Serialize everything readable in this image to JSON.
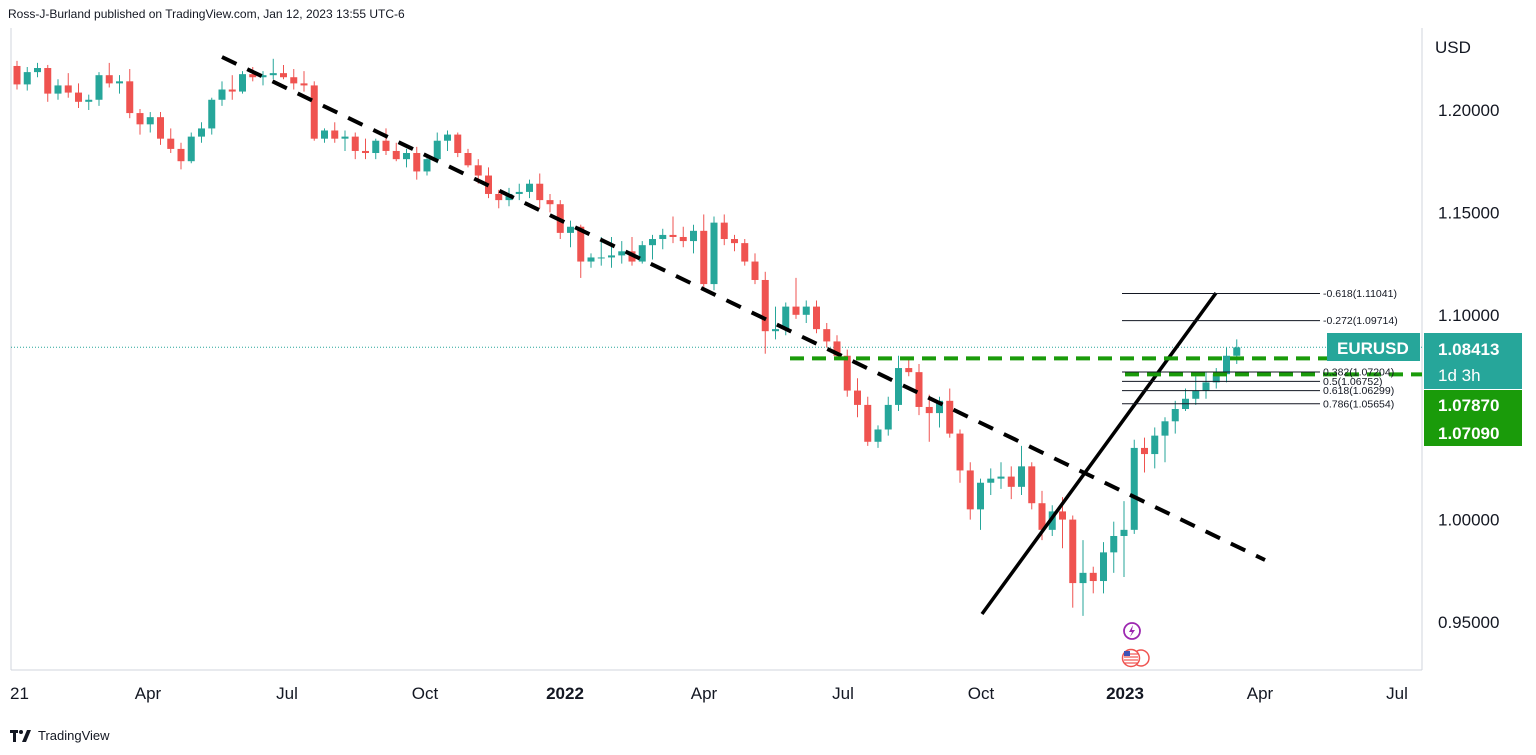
{
  "header": {
    "text": "Ross-J-Burland published on TradingView.com, Jan 12, 2023 13:55 UTC-6"
  },
  "footer": {
    "brand": "TradingView"
  },
  "chart_data": {
    "type": "candlestick",
    "symbol": "EURUSD",
    "currency": "USD",
    "interval_label": "1d 3h",
    "y_range": [
      0.92,
      1.225
    ],
    "y_ticks": [
      "1.20000",
      "1.15000",
      "1.10000",
      "1.00000",
      "0.95000"
    ],
    "x_ticks": [
      {
        "label": "21",
        "bold": false
      },
      {
        "label": "Apr",
        "bold": false
      },
      {
        "label": "Jul",
        "bold": false
      },
      {
        "label": "Oct",
        "bold": false
      },
      {
        "label": "2022",
        "bold": true
      },
      {
        "label": "Apr",
        "bold": false
      },
      {
        "label": "Jul",
        "bold": false
      },
      {
        "label": "Oct",
        "bold": false
      },
      {
        "label": "2023",
        "bold": true
      },
      {
        "label": "Apr",
        "bold": false
      },
      {
        "label": "Jul",
        "bold": false
      }
    ],
    "price_labels": [
      {
        "symbol": "EURUSD",
        "value": "1.08413",
        "sub": "1d 3h",
        "color": "#26a69a"
      },
      {
        "value": "1.07870",
        "color": "#1a9b0a"
      },
      {
        "value": "1.07090",
        "color": "#1a9b0a"
      }
    ],
    "last_price": 1.08413,
    "colors": {
      "up": "#26a69a",
      "down": "#ef5350",
      "dashed_level": "#1a9b0a",
      "trend": "#000000"
    },
    "fib_levels": [
      {
        "label": "-0.618(1.11041)",
        "value": 1.11041
      },
      {
        "label": "-0.272(1.09714)",
        "value": 1.09714
      },
      {
        "label": "0.382(1.07204)",
        "value": 1.07204
      },
      {
        "label": "0.5(1.06752)",
        "value": 1.06752
      },
      {
        "label": "0.618(1.06299)",
        "value": 1.06299
      },
      {
        "label": "0.786(1.05654)",
        "value": 1.05654
      }
    ],
    "candles": [
      [
        1.2215,
        1.224,
        1.21,
        1.2125
      ],
      [
        1.2125,
        1.221,
        1.2095,
        1.2185
      ],
      [
        1.2185,
        1.223,
        1.216,
        1.2205
      ],
      [
        1.2205,
        1.222,
        1.204,
        1.208
      ],
      [
        1.208,
        1.215,
        1.205,
        1.212
      ],
      [
        1.212,
        1.218,
        1.206,
        1.2085
      ],
      [
        1.2085,
        1.213,
        1.201,
        1.204
      ],
      [
        1.204,
        1.2075,
        1.2,
        1.205
      ],
      [
        1.205,
        1.2185,
        1.202,
        1.217
      ],
      [
        1.217,
        1.223,
        1.211,
        1.213
      ],
      [
        1.213,
        1.217,
        1.208,
        1.214
      ],
      [
        1.214,
        1.22,
        1.196,
        1.1985
      ],
      [
        1.1985,
        1.2005,
        1.188,
        1.193
      ],
      [
        1.193,
        1.199,
        1.189,
        1.1965
      ],
      [
        1.1965,
        1.199,
        1.183,
        1.186
      ],
      [
        1.186,
        1.191,
        1.179,
        1.181
      ],
      [
        1.181,
        1.184,
        1.171,
        1.175
      ],
      [
        1.175,
        1.189,
        1.174,
        1.187
      ],
      [
        1.187,
        1.194,
        1.184,
        1.191
      ],
      [
        1.191,
        1.206,
        1.188,
        1.205
      ],
      [
        1.205,
        1.214,
        1.202,
        1.21
      ],
      [
        1.21,
        1.217,
        1.205,
        1.209
      ],
      [
        1.209,
        1.219,
        1.208,
        1.2175
      ],
      [
        1.2175,
        1.221,
        1.214,
        1.216
      ],
      [
        1.216,
        1.219,
        1.212,
        1.217
      ],
      [
        1.217,
        1.225,
        1.215,
        1.218
      ],
      [
        1.218,
        1.222,
        1.215,
        1.216
      ],
      [
        1.216,
        1.22,
        1.21,
        1.213
      ],
      [
        1.213,
        1.219,
        1.209,
        1.212
      ],
      [
        1.212,
        1.214,
        1.185,
        1.186
      ],
      [
        1.186,
        1.191,
        1.184,
        1.19
      ],
      [
        1.19,
        1.194,
        1.184,
        1.186
      ],
      [
        1.186,
        1.19,
        1.18,
        1.187
      ],
      [
        1.187,
        1.189,
        1.176,
        1.18
      ],
      [
        1.18,
        1.186,
        1.176,
        1.179
      ],
      [
        1.179,
        1.186,
        1.176,
        1.185
      ],
      [
        1.185,
        1.191,
        1.178,
        1.18
      ],
      [
        1.18,
        1.184,
        1.175,
        1.176
      ],
      [
        1.176,
        1.181,
        1.172,
        1.179
      ],
      [
        1.179,
        1.182,
        1.166,
        1.17
      ],
      [
        1.17,
        1.178,
        1.168,
        1.176
      ],
      [
        1.176,
        1.189,
        1.174,
        1.185
      ],
      [
        1.185,
        1.19,
        1.18,
        1.188
      ],
      [
        1.188,
        1.189,
        1.177,
        1.179
      ],
      [
        1.179,
        1.181,
        1.172,
        1.173
      ],
      [
        1.173,
        1.176,
        1.164,
        1.168
      ],
      [
        1.168,
        1.172,
        1.157,
        1.159
      ],
      [
        1.159,
        1.161,
        1.152,
        1.156
      ],
      [
        1.156,
        1.162,
        1.153,
        1.159
      ],
      [
        1.159,
        1.164,
        1.156,
        1.16
      ],
      [
        1.16,
        1.166,
        1.157,
        1.164
      ],
      [
        1.164,
        1.169,
        1.152,
        1.156
      ],
      [
        1.156,
        1.159,
        1.15,
        1.154
      ],
      [
        1.154,
        1.156,
        1.137,
        1.14
      ],
      [
        1.14,
        1.146,
        1.133,
        1.143
      ],
      [
        1.143,
        1.144,
        1.118,
        1.126
      ],
      [
        1.126,
        1.13,
        1.123,
        1.128
      ],
      [
        1.128,
        1.138,
        1.124,
        1.128
      ],
      [
        1.128,
        1.138,
        1.123,
        1.129
      ],
      [
        1.129,
        1.136,
        1.125,
        1.131
      ],
      [
        1.131,
        1.138,
        1.124,
        1.126
      ],
      [
        1.126,
        1.136,
        1.125,
        1.134
      ],
      [
        1.134,
        1.139,
        1.127,
        1.137
      ],
      [
        1.137,
        1.142,
        1.132,
        1.139
      ],
      [
        1.139,
        1.148,
        1.135,
        1.138
      ],
      [
        1.138,
        1.143,
        1.133,
        1.136
      ],
      [
        1.136,
        1.144,
        1.13,
        1.141
      ],
      [
        1.141,
        1.149,
        1.112,
        1.115
      ],
      [
        1.115,
        1.148,
        1.112,
        1.145
      ],
      [
        1.145,
        1.149,
        1.134,
        1.137
      ],
      [
        1.137,
        1.139,
        1.131,
        1.135
      ],
      [
        1.135,
        1.137,
        1.124,
        1.126
      ],
      [
        1.126,
        1.13,
        1.115,
        1.117
      ],
      [
        1.117,
        1.121,
        1.081,
        1.092
      ],
      [
        1.092,
        1.104,
        1.088,
        1.093
      ],
      [
        1.093,
        1.106,
        1.09,
        1.104
      ],
      [
        1.104,
        1.118,
        1.098,
        1.1
      ],
      [
        1.1,
        1.107,
        1.096,
        1.104
      ],
      [
        1.104,
        1.107,
        1.091,
        1.093
      ],
      [
        1.093,
        1.096,
        1.084,
        1.087
      ],
      [
        1.087,
        1.09,
        1.078,
        1.08
      ],
      [
        1.08,
        1.083,
        1.06,
        1.063
      ],
      [
        1.063,
        1.069,
        1.05,
        1.056
      ],
      [
        1.056,
        1.06,
        1.036,
        1.038
      ],
      [
        1.038,
        1.046,
        1.035,
        1.044
      ],
      [
        1.044,
        1.06,
        1.041,
        1.056
      ],
      [
        1.056,
        1.08,
        1.053,
        1.074
      ],
      [
        1.074,
        1.078,
        1.07,
        1.072
      ],
      [
        1.072,
        1.076,
        1.051,
        1.055
      ],
      [
        1.055,
        1.061,
        1.038,
        1.052
      ],
      [
        1.052,
        1.06,
        1.045,
        1.058
      ],
      [
        1.058,
        1.064,
        1.04,
        1.042
      ],
      [
        1.042,
        1.044,
        1.018,
        1.024
      ],
      [
        1.024,
        1.028,
        1.0,
        1.005
      ],
      [
        1.005,
        1.02,
        0.995,
        1.018
      ],
      [
        1.018,
        1.025,
        1.012,
        1.02
      ],
      [
        1.02,
        1.028,
        1.015,
        1.021
      ],
      [
        1.021,
        1.026,
        1.01,
        1.016
      ],
      [
        1.016,
        1.036,
        1.012,
        1.026
      ],
      [
        1.026,
        1.028,
        1.005,
        1.008
      ],
      [
        1.008,
        1.014,
        0.99,
        0.995
      ],
      [
        0.995,
        1.007,
        0.992,
        1.004
      ],
      [
        1.004,
        1.011,
        0.986,
        1.0
      ],
      [
        1.0,
        1.002,
        0.957,
        0.969
      ],
      [
        0.969,
        0.99,
        0.953,
        0.974
      ],
      [
        0.974,
        0.977,
        0.964,
        0.97
      ],
      [
        0.97,
        0.989,
        0.964,
        0.984
      ],
      [
        0.984,
        0.999,
        0.974,
        0.992
      ],
      [
        0.992,
        1.009,
        0.972,
        0.995
      ],
      [
        0.995,
        1.039,
        0.993,
        1.035
      ],
      [
        1.035,
        1.04,
        1.023,
        1.032
      ],
      [
        1.032,
        1.045,
        1.025,
        1.041
      ],
      [
        1.041,
        1.05,
        1.028,
        1.048
      ],
      [
        1.048,
        1.058,
        1.042,
        1.054
      ],
      [
        1.054,
        1.064,
        1.053,
        1.059
      ],
      [
        1.059,
        1.07,
        1.056,
        1.063
      ],
      [
        1.063,
        1.072,
        1.059,
        1.067
      ],
      [
        1.067,
        1.074,
        1.064,
        1.071
      ],
      [
        1.071,
        1.084,
        1.067,
        1.08
      ],
      [
        1.08,
        1.088,
        1.076,
        1.0841
      ]
    ]
  }
}
